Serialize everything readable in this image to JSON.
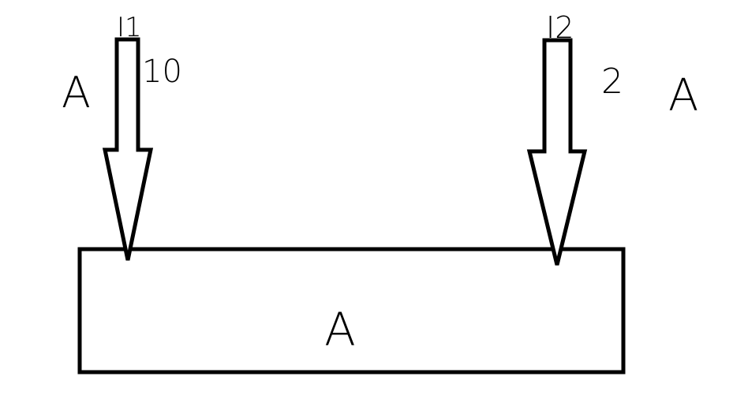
{
  "diagram": {
    "arrows": [
      {
        "id": "arrow-1",
        "tag": "I1",
        "value": "10",
        "side_label": "A"
      },
      {
        "id": "arrow-2",
        "tag": "I2",
        "value": "2",
        "side_label": "A"
      }
    ],
    "block": {
      "label": "A"
    },
    "colors": {
      "ink": "#000000",
      "background": "#ffffff"
    }
  }
}
